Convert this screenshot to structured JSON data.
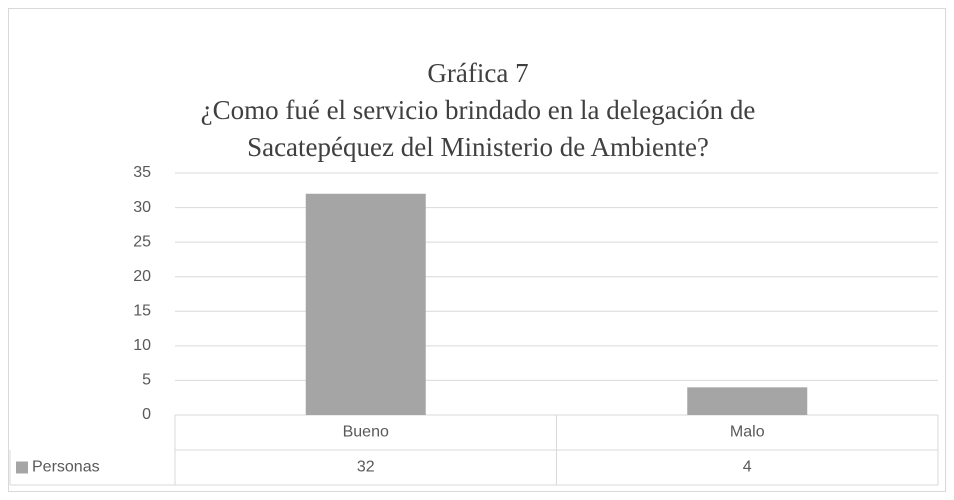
{
  "chart_data": {
    "type": "bar",
    "title": [
      "Gráfica 7",
      "¿Como fué el servicio brindado en la delegación de",
      "Sacatepéquez del Ministerio de Ambiente?"
    ],
    "categories": [
      "Bueno",
      "Malo"
    ],
    "series": [
      {
        "name": "Personas",
        "color": "#a5a5a5",
        "values": [
          32,
          4
        ]
      }
    ],
    "ylim": [
      0,
      35
    ],
    "yticks": [
      0,
      5,
      10,
      15,
      20,
      25,
      30,
      35
    ],
    "grid": true,
    "data_table": true
  }
}
